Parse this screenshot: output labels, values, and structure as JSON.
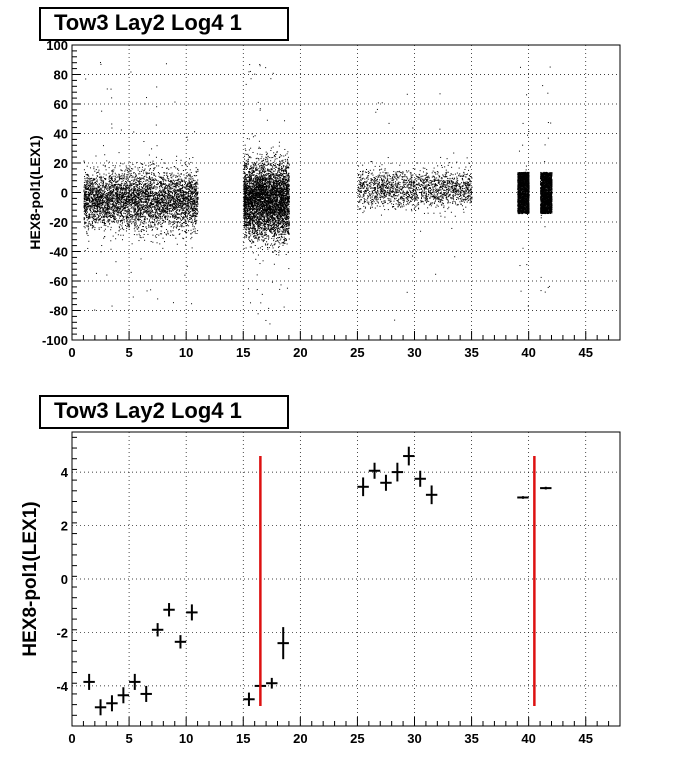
{
  "chart_data": [
    {
      "type": "scatter",
      "title": "Tow3 Lay2 Log4 1",
      "xlabel": "",
      "ylabel": "HEX8-pol1(LEX1)",
      "xlim": [
        0,
        48
      ],
      "ylim": [
        -100,
        100
      ],
      "xticks": [
        0,
        5,
        10,
        15,
        20,
        25,
        30,
        35,
        40,
        45
      ],
      "yticks": [
        -100,
        -80,
        -60,
        -40,
        -20,
        0,
        20,
        40,
        60,
        80,
        100
      ],
      "grid": true,
      "clusters": [
        {
          "x_range": [
            1,
            11
          ],
          "y_center": -5,
          "y_spread": 14,
          "density": "high"
        },
        {
          "x_range": [
            15,
            19
          ],
          "y_center": -5,
          "y_spread": 18,
          "density": "high"
        },
        {
          "x_range": [
            25,
            35
          ],
          "y_center": 3,
          "y_spread": 9,
          "density": "medium"
        },
        {
          "x_range": [
            39,
            40
          ],
          "y_center": 0,
          "y_spread": 14,
          "density": "very-high"
        },
        {
          "x_range": [
            41,
            42
          ],
          "y_center": 0,
          "y_spread": 14,
          "density": "very-high"
        }
      ]
    },
    {
      "type": "scatter",
      "title": "Tow3 Lay2 Log4 1",
      "xlabel": "",
      "ylabel": "HEX8-pol1(LEX1)",
      "xlim": [
        0,
        48
      ],
      "ylim": [
        -5.5,
        5.5
      ],
      "xticks": [
        0,
        5,
        10,
        15,
        20,
        25,
        30,
        35,
        40,
        45
      ],
      "yticks": [
        -4,
        -2,
        0,
        2,
        4
      ],
      "grid": true,
      "points": [
        {
          "x": 1.5,
          "y": -3.85,
          "yerr": 0.3
        },
        {
          "x": 2.5,
          "y": -4.8,
          "yerr": 0.3
        },
        {
          "x": 3.5,
          "y": -4.65,
          "yerr": 0.3
        },
        {
          "x": 4.5,
          "y": -4.35,
          "yerr": 0.3
        },
        {
          "x": 5.5,
          "y": -3.85,
          "yerr": 0.3
        },
        {
          "x": 6.5,
          "y": -4.3,
          "yerr": 0.3
        },
        {
          "x": 7.5,
          "y": -1.9,
          "yerr": 0.25
        },
        {
          "x": 8.5,
          "y": -1.15,
          "yerr": 0.25
        },
        {
          "x": 9.5,
          "y": -2.35,
          "yerr": 0.25
        },
        {
          "x": 10.5,
          "y": -1.25,
          "yerr": 0.3
        },
        {
          "x": 15.5,
          "y": -4.5,
          "yerr": 0.25
        },
        {
          "x": 16.5,
          "y": -4.0,
          "yerr": 0.0
        },
        {
          "x": 17.5,
          "y": -3.9,
          "yerr": 0.2
        },
        {
          "x": 18.5,
          "y": -2.4,
          "yerr": 0.6
        },
        {
          "x": 25.5,
          "y": 3.45,
          "yerr": 0.35
        },
        {
          "x": 26.5,
          "y": 4.05,
          "yerr": 0.3
        },
        {
          "x": 27.5,
          "y": 3.6,
          "yerr": 0.3
        },
        {
          "x": 28.5,
          "y": 4.0,
          "yerr": 0.35
        },
        {
          "x": 29.5,
          "y": 4.6,
          "yerr": 0.35
        },
        {
          "x": 30.5,
          "y": 3.75,
          "yerr": 0.3
        },
        {
          "x": 31.5,
          "y": 3.15,
          "yerr": 0.35
        },
        {
          "x": 39.5,
          "y": 3.05,
          "yerr": 0.05
        },
        {
          "x": 41.5,
          "y": 3.4,
          "yerr": 0.05
        }
      ],
      "vertical_lines": [
        {
          "x": 16.5,
          "y_range": [
            -4.75,
            4.6
          ],
          "color": "#dd1111"
        },
        {
          "x": 40.5,
          "y_range": [
            -4.75,
            4.6
          ],
          "color": "#dd1111"
        }
      ]
    }
  ]
}
